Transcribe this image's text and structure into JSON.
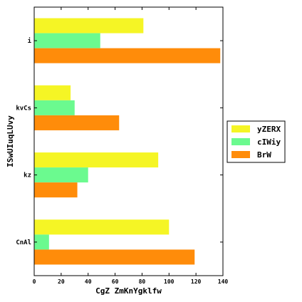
{
  "chart_data": {
    "type": "bar",
    "orientation": "horizontal",
    "categories": [
      "CnAl",
      "kz",
      "kvCs",
      "i"
    ],
    "series": [
      {
        "name": "yZERX",
        "color": "#f5f525",
        "values": [
          100,
          92,
          27,
          81
        ]
      },
      {
        "name": "cIWiy",
        "color": "#6bfa8f",
        "values": [
          11,
          40,
          30,
          49
        ]
      },
      {
        "name": "BrW",
        "color": "#ff8c0a",
        "values": [
          119,
          32,
          63,
          138
        ]
      }
    ],
    "xlabel": "CgZ ZmKnYgklfw",
    "ylabel": "ISwUIuqLUvy",
    "xlim": [
      0,
      140
    ],
    "xticks": [
      0,
      20,
      40,
      60,
      80,
      100,
      120,
      140
    ],
    "legend_position": "right",
    "grid": false
  }
}
